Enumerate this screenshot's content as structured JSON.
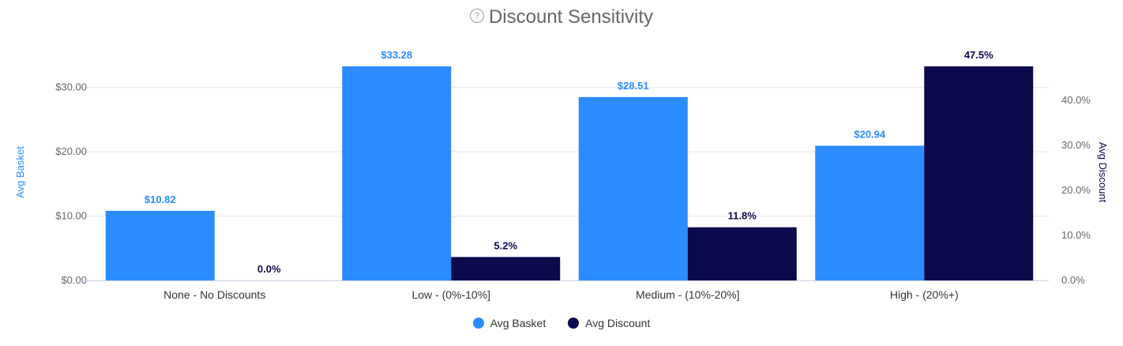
{
  "title": "Discount Sensitivity",
  "help_icon": "question-circle-icon",
  "colors": {
    "avg_basket": "#2A8CFF",
    "avg_discount": "#0A0A4B"
  },
  "chart_data": {
    "type": "bar",
    "title": "Discount Sensitivity",
    "categories": [
      "None - No Discounts",
      "Low - (0%-10%]",
      "Medium - (10%-20%]",
      "High - (20%+)"
    ],
    "series": [
      {
        "name": "Avg Basket",
        "axis": "left",
        "values": [
          10.82,
          33.28,
          28.51,
          20.94
        ],
        "labels": [
          "$10.82",
          "$33.28",
          "$28.51",
          "$20.94"
        ]
      },
      {
        "name": "Avg Discount",
        "axis": "right",
        "values": [
          0.0,
          5.2,
          11.8,
          47.5
        ],
        "labels": [
          "0.0%",
          "5.2%",
          "11.8%",
          "47.5%"
        ]
      }
    ],
    "y_left": {
      "label": "Avg Basket",
      "ticks": [
        "$0.00",
        "$10.00",
        "$20.00",
        "$30.00"
      ],
      "tick_values": [
        0,
        10,
        20,
        30
      ],
      "range": [
        0,
        33.28
      ]
    },
    "y_right": {
      "label": "Avg Discount",
      "ticks": [
        "0.0%",
        "10.0%",
        "20.0%",
        "30.0%",
        "40.0%"
      ],
      "tick_values": [
        0,
        10,
        20,
        30,
        40
      ],
      "range": [
        0,
        47.5
      ]
    },
    "grid": true,
    "legend_position": "bottom-center"
  }
}
